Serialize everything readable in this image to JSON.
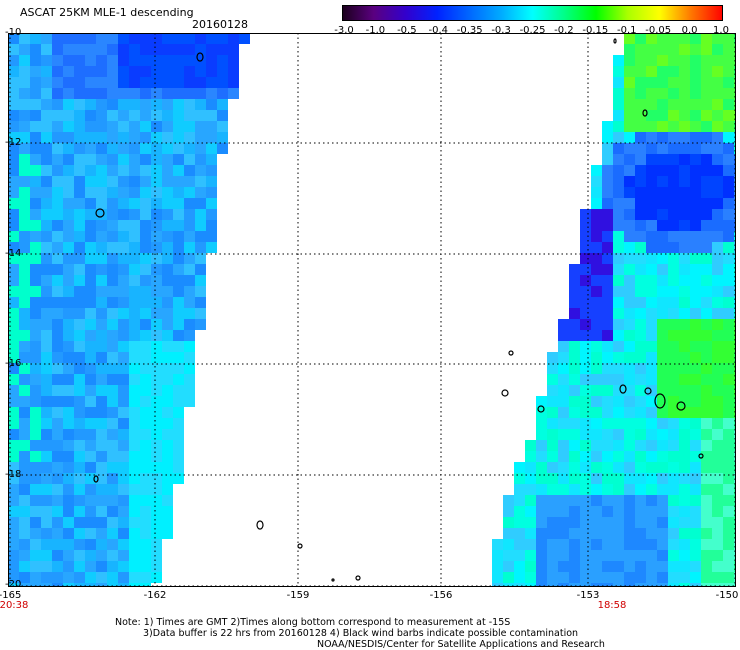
{
  "header": {
    "title": "ASCAT 25KM MLE-1 descending",
    "date": "20160128"
  },
  "colorbar": {
    "labels": [
      "-3.0",
      "-1.0",
      "-0.5",
      "-0.4",
      "-0.35",
      "-0.3",
      "-0.25",
      "-0.2",
      "-0.15",
      "-0.1",
      "-0.05",
      "0.0",
      "1.0"
    ],
    "colors": [
      "#1a001a",
      "#5a0080",
      "#3300cc",
      "#0022ff",
      "#0066ff",
      "#00aaff",
      "#00ffff",
      "#00ff88",
      "#00ff00",
      "#aaff00",
      "#ffff00",
      "#ff7700",
      "#ff0000"
    ]
  },
  "map": {
    "y_labels": [
      "-10",
      "-12",
      "-14",
      "-16",
      "-18",
      "-20"
    ],
    "x_labels": [
      "-165",
      "-162",
      "-159",
      "-156",
      "-153",
      "-150"
    ],
    "times": {
      "left": "20:38",
      "right": "18:58"
    },
    "lat_range": [
      -20,
      -10
    ],
    "lon_range": [
      -165,
      -150
    ]
  },
  "notes": {
    "line1": "Note: 1) Times are GMT 2)Times along bottom correspond to measurement at -15S",
    "line2": "3)Data buffer is 22 hrs from 20160128 4) Black wind barbs indicate possible contamination",
    "line3": "NOAA/NESDIS/Center for Satellite Applications and Research"
  }
}
